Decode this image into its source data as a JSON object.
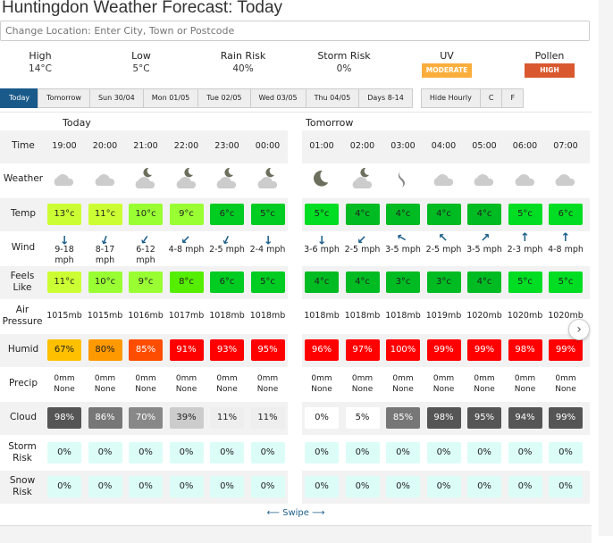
{
  "title": "Huntingdon Weather Forecast: Today",
  "search": {
    "placeholder": "Change Location: Enter City, Town or Postcode"
  },
  "summary": [
    {
      "label": "High",
      "value": "14°C"
    },
    {
      "label": "Low",
      "value": "5°C"
    },
    {
      "label": "Rain Risk",
      "value": "40%"
    },
    {
      "label": "Storm Risk",
      "value": "0%"
    },
    {
      "label": "UV",
      "badge": "MODERATE",
      "color": "#fbae3c"
    },
    {
      "label": "Pollen",
      "badge": "HIGH",
      "color": "#d9582f"
    }
  ],
  "tabs": [
    "Today",
    "Tomorrow",
    "Sun 30/04",
    "Mon 01/05",
    "Tue 02/05",
    "Wed 03/05",
    "Thu 04/05",
    "Days 8-14"
  ],
  "active_tab": "Today",
  "options": [
    "Hide Hourly",
    "C",
    "F"
  ],
  "row_labels": {
    "time": "Time",
    "weather": "Weather",
    "temp": "Temp",
    "wind": "Wind",
    "feels": "Feels Like",
    "pressure": "Air Pressure",
    "humid": "Humid",
    "precip": "Precip",
    "cloud": "Cloud",
    "storm": "Storm Risk",
    "snow": "Snow Risk"
  },
  "days": [
    {
      "name": "Today",
      "time": [
        "19:00",
        "20:00",
        "21:00",
        "22:00",
        "23:00",
        "00:00"
      ],
      "weather": [
        "cloud-icon",
        "cloud-icon",
        "partly-cloudy-night-icon",
        "partly-cloudy-night-icon",
        "partly-cloudy-night-icon",
        "partly-cloudy-night-icon"
      ],
      "temp": [
        "13°c",
        "11°c",
        "10°c",
        "9°c",
        "6°c",
        "5°c"
      ],
      "temp_colors": [
        "#ccff33",
        "#ccff33",
        "#99ff33",
        "#99ff33",
        "#00cc22",
        "#00cc22"
      ],
      "wind": [
        "9-18 mph",
        "8-17 mph",
        "6-12 mph",
        "4-8 mph",
        "2-5 mph",
        "2-4 mph"
      ],
      "wind_dir_deg": [
        180,
        200,
        215,
        225,
        205,
        180
      ],
      "feels": [
        "11°c",
        "10°c",
        "9°c",
        "8°c",
        "6°c",
        "5°c"
      ],
      "feels_colors": [
        "#ccff33",
        "#99ff33",
        "#99ff33",
        "#55ee00",
        "#00cc22",
        "#00cc22"
      ],
      "pressure": [
        "1015mb",
        "1015mb",
        "1016mb",
        "1017mb",
        "1018mb",
        "1018mb"
      ],
      "humid": [
        "67%",
        "80%",
        "85%",
        "91%",
        "93%",
        "95%"
      ],
      "humid_colors": [
        "#ffc000",
        "#ff9900",
        "#ff4d00",
        "#ff0000",
        "#ff0000",
        "#ff0000"
      ],
      "precip": [
        "0mm None",
        "0mm None",
        "0mm None",
        "0mm None",
        "0mm None",
        "0mm None"
      ],
      "cloud": [
        "98%",
        "86%",
        "70%",
        "39%",
        "11%",
        "11%"
      ],
      "cloud_colors": [
        "#555555",
        "#777777",
        "#888888",
        "#cccccc",
        "#eeeeee",
        "#eeeeee"
      ],
      "storm": [
        "0%",
        "0%",
        "0%",
        "0%",
        "0%",
        "0%"
      ],
      "snow": [
        "0%",
        "0%",
        "0%",
        "0%",
        "0%",
        "0%"
      ]
    },
    {
      "name": "Tomorrow",
      "time": [
        "01:00",
        "02:00",
        "03:00",
        "04:00",
        "05:00",
        "06:00",
        "07:00"
      ],
      "weather": [
        "moon-icon",
        "partly-cloudy-night-icon",
        "mist-icon",
        "cloud-icon",
        "cloud-icon",
        "cloud-icon",
        "cloud-icon"
      ],
      "temp": [
        "5°c",
        "4°c",
        "4°c",
        "4°c",
        "4°c",
        "5°c",
        "6°c"
      ],
      "temp_colors": [
        "#00dd22",
        "#00bb22",
        "#00bb22",
        "#00bb22",
        "#00bb22",
        "#00dd22",
        "#00dd22"
      ],
      "wind": [
        "3-6 mph",
        "2-5 mph",
        "3-5 mph",
        "2-5 mph",
        "3-5 mph",
        "2-3 mph",
        "4-8 mph"
      ],
      "wind_dir_deg": [
        180,
        225,
        300,
        315,
        45,
        0,
        0
      ],
      "feels": [
        "4°c",
        "4°c",
        "3°c",
        "3°c",
        "4°c",
        "5°c",
        "5°c"
      ],
      "feels_colors": [
        "#00bb22",
        "#00bb22",
        "#00bb22",
        "#00bb22",
        "#00bb22",
        "#00dd22",
        "#00dd22"
      ],
      "pressure": [
        "1018mb",
        "1018mb",
        "1018mb",
        "1019mb",
        "1020mb",
        "1020mb",
        "1020mb"
      ],
      "humid": [
        "96%",
        "97%",
        "100%",
        "99%",
        "99%",
        "98%",
        "99%"
      ],
      "humid_colors": [
        "#ff0000",
        "#ff0000",
        "#ff0000",
        "#ff0000",
        "#ff0000",
        "#ff0000",
        "#ff0000"
      ],
      "precip": [
        "0mm None",
        "0mm None",
        "0mm None",
        "0mm None",
        "0mm None",
        "0mm None",
        "0mm None"
      ],
      "cloud": [
        "0%",
        "5%",
        "85%",
        "98%",
        "95%",
        "94%",
        "99%"
      ],
      "cloud_colors": [
        "#ffffff",
        "#ffffff",
        "#777777",
        "#555555",
        "#555555",
        "#555555",
        "#555555"
      ],
      "storm": [
        "0%",
        "0%",
        "0%",
        "0%",
        "0%",
        "0%",
        "0%"
      ],
      "snow": [
        "0%",
        "0%",
        "0%",
        "0%",
        "0%",
        "0%",
        "0%"
      ]
    }
  ],
  "risk_color": "#dcfdf7",
  "swipe": "⟵ Swipe ⟶"
}
